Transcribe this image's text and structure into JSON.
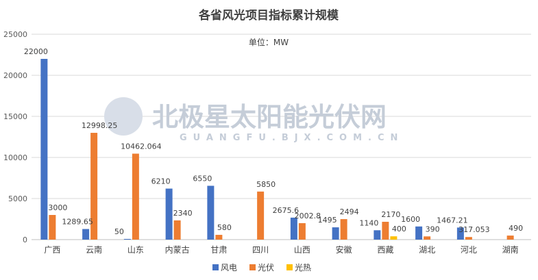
{
  "chart_data": {
    "type": "bar",
    "title": "各省风光项目指标累计规模",
    "subtitle": "单位：MW",
    "categories": [
      "广西",
      "云南",
      "山东",
      "内蒙古",
      "甘肃",
      "四川",
      "山西",
      "安徽",
      "西藏",
      "湖北",
      "河北",
      "湖南"
    ],
    "series": [
      {
        "name": "风电",
        "color": "#4472c4",
        "values": [
          22000,
          1289.65,
          50,
          6210,
          6550,
          null,
          2675.6,
          1495,
          1140,
          1600,
          1467.21,
          null
        ],
        "labels": [
          "22000",
          "1289.65",
          "50",
          "6210",
          "6550",
          "",
          "2675.6",
          "1495",
          "1140",
          "1600",
          "1467.21",
          ""
        ]
      },
      {
        "name": "光伏",
        "color": "#ed7d31",
        "values": [
          3000,
          12998.25,
          10462.064,
          2340,
          580,
          5850,
          2002.8,
          2494,
          2170,
          390,
          317.053,
          490
        ],
        "labels": [
          "3000",
          "12998.25",
          "10462.064",
          "2340",
          "580",
          "5850",
          "2002.8",
          "2494",
          "2170",
          "390",
          "317.053",
          "490"
        ]
      },
      {
        "name": "光热",
        "color": "#ffc000",
        "values": [
          null,
          null,
          null,
          null,
          null,
          null,
          null,
          null,
          400,
          null,
          null,
          null
        ],
        "labels": [
          "",
          "",
          "",
          "",
          "",
          "",
          "",
          "",
          "400",
          "",
          "",
          ""
        ]
      }
    ],
    "yticks": [
      "0",
      "5000",
      "10000",
      "15000",
      "20000",
      "25000"
    ],
    "ylim": [
      0,
      25000
    ],
    "grid": true,
    "legend_position": "bottom"
  },
  "watermark": {
    "text": "北极星太阳能光伏网",
    "subtext": "GUANGFU.BJX.COM.CN"
  }
}
